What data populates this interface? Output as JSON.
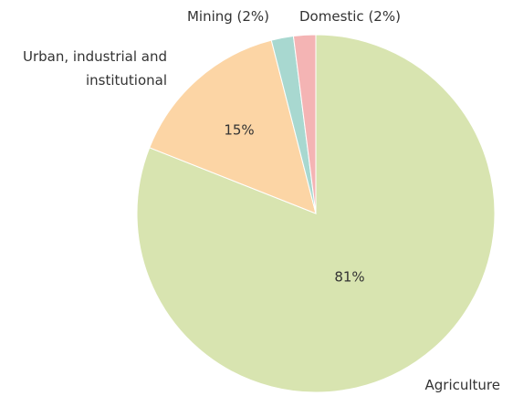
{
  "chart_data": {
    "type": "pie",
    "categories": [
      "Agriculture",
      "Urban, industrial and institutional",
      "Mining (2%)",
      "Domestic (2%)"
    ],
    "values": [
      81,
      15,
      2,
      2
    ],
    "value_labels": [
      "81%",
      "15%",
      null,
      null
    ],
    "colors": [
      "#d8e4b0",
      "#fcd5a5",
      "#a8d8d0",
      "#f4b4b4"
    ]
  }
}
